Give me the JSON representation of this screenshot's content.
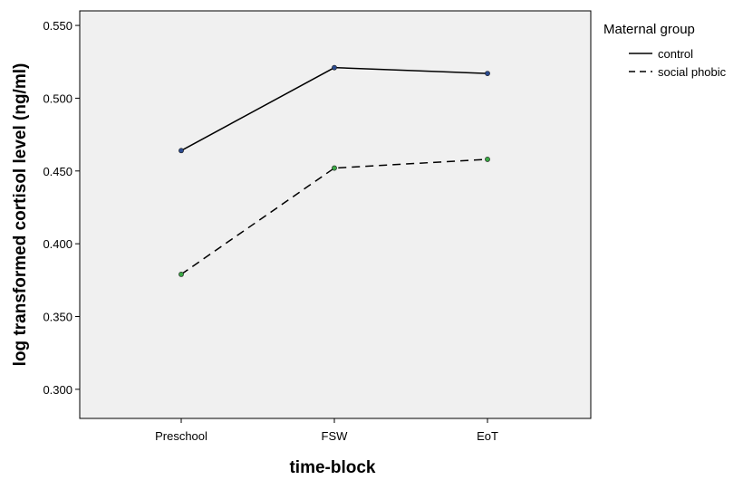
{
  "chart_data": {
    "type": "line",
    "title": "",
    "xlabel": "time-block",
    "ylabel": "log transformed cortisol level (ng/ml)",
    "categories": [
      "Preschool",
      "FSW",
      "EoT"
    ],
    "ylim": [
      0.28,
      0.56
    ],
    "yticks": [
      0.3,
      0.35,
      0.4,
      0.45,
      0.5,
      0.55
    ],
    "ytick_labels": [
      "0.300",
      "0.350",
      "0.400",
      "0.450",
      "0.500",
      "0.550"
    ],
    "grid": false,
    "plot_background": "#f0f0f0",
    "legend": {
      "title": "Maternal group",
      "position": "right"
    },
    "series": [
      {
        "name": "control",
        "values": [
          0.464,
          0.521,
          0.517
        ],
        "line_style": "solid",
        "line_color": "#000000",
        "marker_color": "#2b4a8e"
      },
      {
        "name": "social phobic",
        "values": [
          0.379,
          0.452,
          0.458
        ],
        "line_style": "dashed",
        "line_color": "#000000",
        "marker_color": "#3aa845"
      }
    ]
  }
}
